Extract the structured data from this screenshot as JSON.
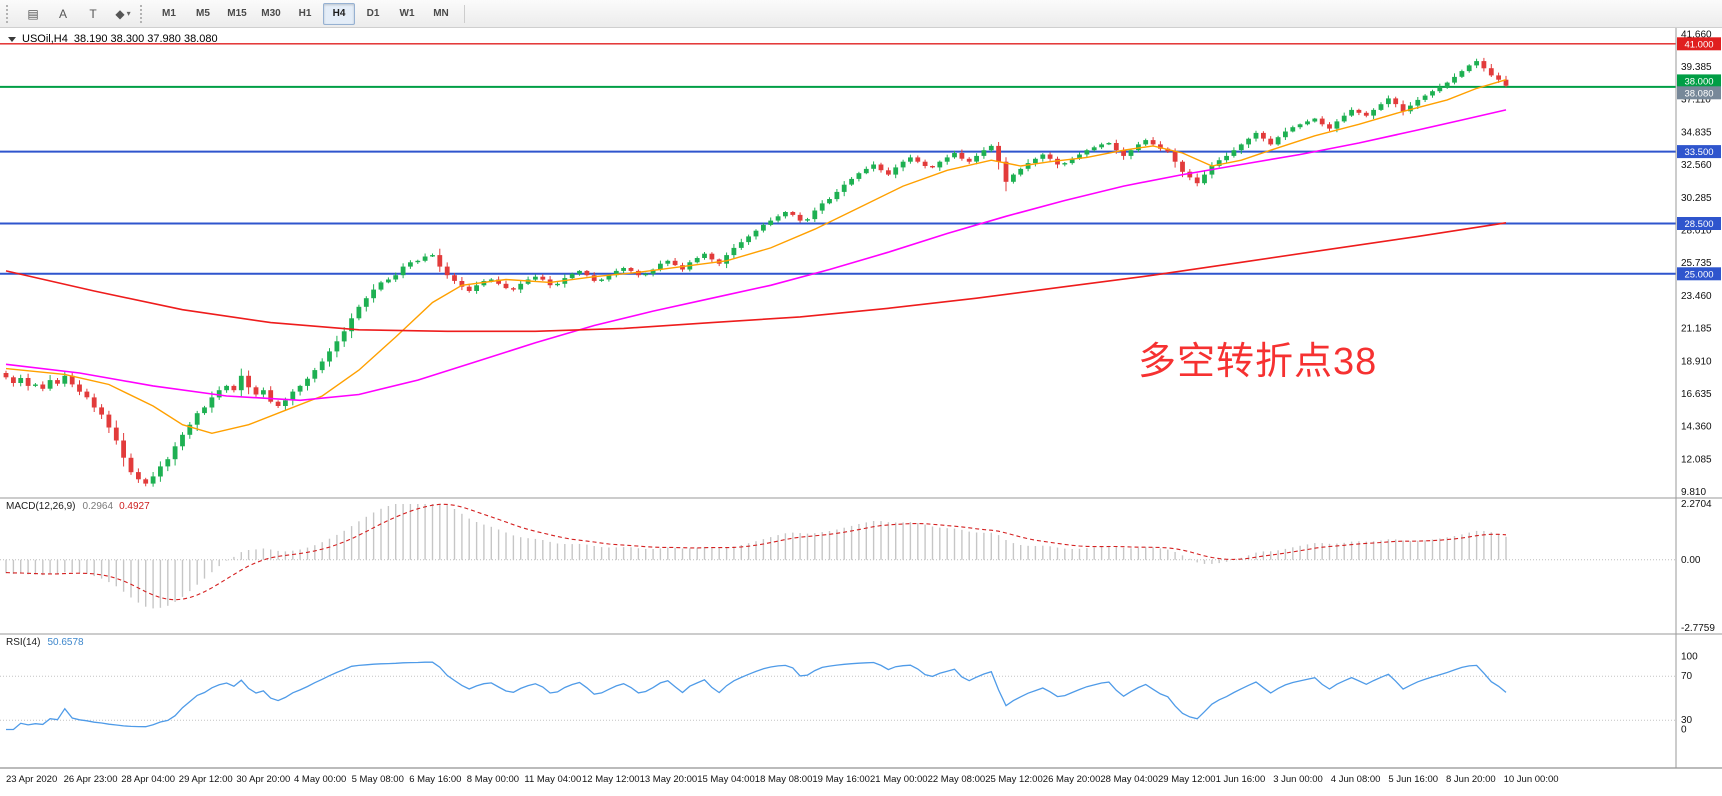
{
  "toolbar": {
    "icons": [
      {
        "name": "chart-type-icon",
        "glyph": "▤"
      },
      {
        "name": "text-annotation-icon",
        "glyph": "A"
      },
      {
        "name": "template-icon",
        "glyph": "T"
      },
      {
        "name": "shapes-icon",
        "glyph": "◆",
        "caret": true
      }
    ],
    "timeframes": [
      {
        "label": "M1"
      },
      {
        "label": "M5"
      },
      {
        "label": "M15"
      },
      {
        "label": "M30"
      },
      {
        "label": "H1"
      },
      {
        "label": "H4",
        "active": true
      },
      {
        "label": "D1"
      },
      {
        "label": "W1"
      },
      {
        "label": "MN"
      }
    ]
  },
  "annotation": {
    "text": "多空转折点38",
    "color": "#f63131"
  },
  "chart_data": {
    "type": "candlestick",
    "title": "USOil,H4",
    "ohlc_label": "38.190 38.300 37.980 38.080",
    "ohlc_display": {
      "open": 38.19,
      "high": 38.3,
      "low": 37.98,
      "close": 38.08
    },
    "y_range": [
      9.4,
      42.1
    ],
    "up_color": "#1eb052",
    "down_color": "#e23b3b",
    "price_axis_labels": [
      "41.660",
      "39.385",
      "37.110",
      "34.835",
      "32.560",
      "30.285",
      "28.010",
      "25.735",
      "23.460",
      "21.185",
      "18.910",
      "16.635",
      "14.360",
      "12.085",
      "9.810"
    ],
    "time_labels": [
      "23 Apr 2020",
      "26 Apr 23:00",
      "28 Apr 04:00",
      "29 Apr 12:00",
      "30 Apr 20:00",
      "4 May 00:00",
      "5 May 08:00",
      "6 May 16:00",
      "8 May 00:00",
      "11 May 04:00",
      "12 May 12:00",
      "13 May 20:00",
      "15 May 04:00",
      "18 May 08:00",
      "19 May 16:00",
      "21 May 00:00",
      "22 May 08:00",
      "25 May 12:00",
      "26 May 20:00",
      "28 May 04:00",
      "29 May 12:00",
      "1 Jun 16:00",
      "3 Jun 00:00",
      "4 Jun 08:00",
      "5 Jun 16:00",
      "8 Jun 20:00",
      "10 Jun 00:00"
    ],
    "closes": [
      17.8,
      17.4,
      17.75,
      17.2,
      17.3,
      17.0,
      17.6,
      17.35,
      17.9,
      17.3,
      16.8,
      16.4,
      15.7,
      15.2,
      14.3,
      13.4,
      12.2,
      11.2,
      10.7,
      10.4,
      10.9,
      11.6,
      12.1,
      13.0,
      13.8,
      14.5,
      15.3,
      15.7,
      16.4,
      16.9,
      17.2,
      16.9,
      17.9,
      17.1,
      16.6,
      16.9,
      16.1,
      15.8,
      16.2,
      16.8,
      17.2,
      17.7,
      18.3,
      18.9,
      19.6,
      20.3,
      21.0,
      21.9,
      22.7,
      23.3,
      23.9,
      24.4,
      24.6,
      24.9,
      25.5,
      25.8,
      25.9,
      26.2,
      26.3,
      25.5,
      24.9,
      24.5,
      24.1,
      23.8,
      24.2,
      24.5,
      24.6,
      24.3,
      24.0,
      23.9,
      24.3,
      24.6,
      24.8,
      24.6,
      24.2,
      24.3,
      24.7,
      25.0,
      25.2,
      24.9,
      24.5,
      24.6,
      24.9,
      25.2,
      25.4,
      25.2,
      24.9,
      25.0,
      25.3,
      25.7,
      25.9,
      25.6,
      25.3,
      25.8,
      26.1,
      26.4,
      26.0,
      25.7,
      26.3,
      26.8,
      27.2,
      27.6,
      28.0,
      28.4,
      28.7,
      29.0,
      29.3,
      29.1,
      28.7,
      28.8,
      29.4,
      29.9,
      30.2,
      30.7,
      31.2,
      31.6,
      32.0,
      32.3,
      32.6,
      32.2,
      31.9,
      32.4,
      32.8,
      33.1,
      32.8,
      32.5,
      32.4,
      32.8,
      33.1,
      33.4,
      33.0,
      32.8,
      33.2,
      33.6,
      33.9,
      32.8,
      31.4,
      31.9,
      32.3,
      32.7,
      33.0,
      33.3,
      33.0,
      32.6,
      32.7,
      33.0,
      33.3,
      33.6,
      33.8,
      34.0,
      34.1,
      33.6,
      33.2,
      33.6,
      34.0,
      34.3,
      34.0,
      33.7,
      33.5,
      32.8,
      32.1,
      31.7,
      31.3,
      31.9,
      32.5,
      32.9,
      33.2,
      33.6,
      34.0,
      34.4,
      34.8,
      34.4,
      34.0,
      34.5,
      34.9,
      35.2,
      35.4,
      35.6,
      35.8,
      35.4,
      35.1,
      35.6,
      36.0,
      36.4,
      36.2,
      36.0,
      36.4,
      36.8,
      37.2,
      36.8,
      36.3,
      36.7,
      37.1,
      37.4,
      37.7,
      38.0,
      38.3,
      38.7,
      39.1,
      39.5,
      39.8,
      39.3,
      38.8,
      38.5,
      38.08
    ],
    "levels": [
      {
        "price": 41.0,
        "label": "41.000",
        "color": "#e01f1f",
        "width": 1.3
      },
      {
        "price": 38.0,
        "label": "38.000",
        "color": "#009e45",
        "width": 2
      },
      {
        "price": 33.5,
        "label": "33.500",
        "color": "#2f55cd",
        "width": 2
      },
      {
        "price": 28.5,
        "label": "28.500",
        "color": "#2f55cd",
        "width": 2
      },
      {
        "price": 25.0,
        "label": "25.000",
        "color": "#2f55cd",
        "width": 2
      }
    ],
    "bid_badge": {
      "label": "38.080",
      "price": 38.08,
      "color": "#778899"
    },
    "moving_averages": [
      {
        "name": "ma-fast",
        "color": "#ffa000",
        "width": 1.4,
        "points": [
          [
            0,
            18.4
          ],
          [
            8,
            18.0
          ],
          [
            14,
            17.3
          ],
          [
            20,
            15.8
          ],
          [
            24,
            14.5
          ],
          [
            28,
            13.9
          ],
          [
            33,
            14.5
          ],
          [
            38,
            15.5
          ],
          [
            43,
            16.5
          ],
          [
            48,
            18.3
          ],
          [
            53,
            20.6
          ],
          [
            58,
            23.0
          ],
          [
            62,
            24.2
          ],
          [
            68,
            24.6
          ],
          [
            74,
            24.4
          ],
          [
            80,
            24.8
          ],
          [
            86,
            25.1
          ],
          [
            92,
            25.5
          ],
          [
            98,
            25.9
          ],
          [
            104,
            26.8
          ],
          [
            110,
            28.1
          ],
          [
            116,
            29.6
          ],
          [
            122,
            31.1
          ],
          [
            128,
            32.2
          ],
          [
            134,
            32.9
          ],
          [
            138,
            32.5
          ],
          [
            142,
            32.8
          ],
          [
            147,
            33.1
          ],
          [
            152,
            33.6
          ],
          [
            156,
            33.9
          ],
          [
            160,
            33.4
          ],
          [
            164,
            32.5
          ],
          [
            168,
            32.9
          ],
          [
            172,
            33.6
          ],
          [
            178,
            34.6
          ],
          [
            184,
            35.4
          ],
          [
            190,
            36.3
          ],
          [
            196,
            37.1
          ],
          [
            200,
            37.9
          ],
          [
            204,
            38.5
          ]
        ]
      },
      {
        "name": "ma-mid",
        "color": "#ff00ff",
        "width": 1.6,
        "points": [
          [
            0,
            18.7
          ],
          [
            10,
            18.1
          ],
          [
            20,
            17.2
          ],
          [
            30,
            16.5
          ],
          [
            40,
            16.2
          ],
          [
            48,
            16.6
          ],
          [
            56,
            17.6
          ],
          [
            64,
            18.9
          ],
          [
            72,
            20.2
          ],
          [
            80,
            21.4
          ],
          [
            88,
            22.4
          ],
          [
            96,
            23.3
          ],
          [
            104,
            24.2
          ],
          [
            112,
            25.3
          ],
          [
            120,
            26.5
          ],
          [
            128,
            27.8
          ],
          [
            136,
            29.0
          ],
          [
            144,
            30.1
          ],
          [
            152,
            31.1
          ],
          [
            160,
            31.9
          ],
          [
            168,
            32.6
          ],
          [
            176,
            33.3
          ],
          [
            184,
            34.1
          ],
          [
            192,
            35.0
          ],
          [
            198,
            35.7
          ],
          [
            204,
            36.4
          ]
        ]
      },
      {
        "name": "ma-slow",
        "color": "#ee1c1c",
        "width": 1.6,
        "points": [
          [
            0,
            25.2
          ],
          [
            12,
            23.8
          ],
          [
            24,
            22.5
          ],
          [
            36,
            21.6
          ],
          [
            48,
            21.1
          ],
          [
            60,
            21.0
          ],
          [
            72,
            21.0
          ],
          [
            84,
            21.2
          ],
          [
            96,
            21.6
          ],
          [
            108,
            22.0
          ],
          [
            120,
            22.6
          ],
          [
            132,
            23.3
          ],
          [
            144,
            24.1
          ],
          [
            156,
            24.9
          ],
          [
            168,
            25.8
          ],
          [
            180,
            26.7
          ],
          [
            192,
            27.6
          ],
          [
            204,
            28.55
          ]
        ]
      }
    ],
    "macd": {
      "label": "MACD(12,26,9)",
      "value_main": "0.2964",
      "value_signal": "0.4927",
      "range": [
        -2.7759,
        2.2704
      ],
      "scale_labels": [
        "2.2704",
        "0.00",
        "-2.7759"
      ],
      "hist_color": "#c6c6c6",
      "signal_color": "#d42020"
    },
    "rsi": {
      "label": "RSI(14)",
      "value": "50.6578",
      "scale_labels": [
        "100",
        "70",
        "30",
        "0"
      ],
      "levels": [
        70,
        30
      ],
      "color": "#4f9be8"
    }
  }
}
